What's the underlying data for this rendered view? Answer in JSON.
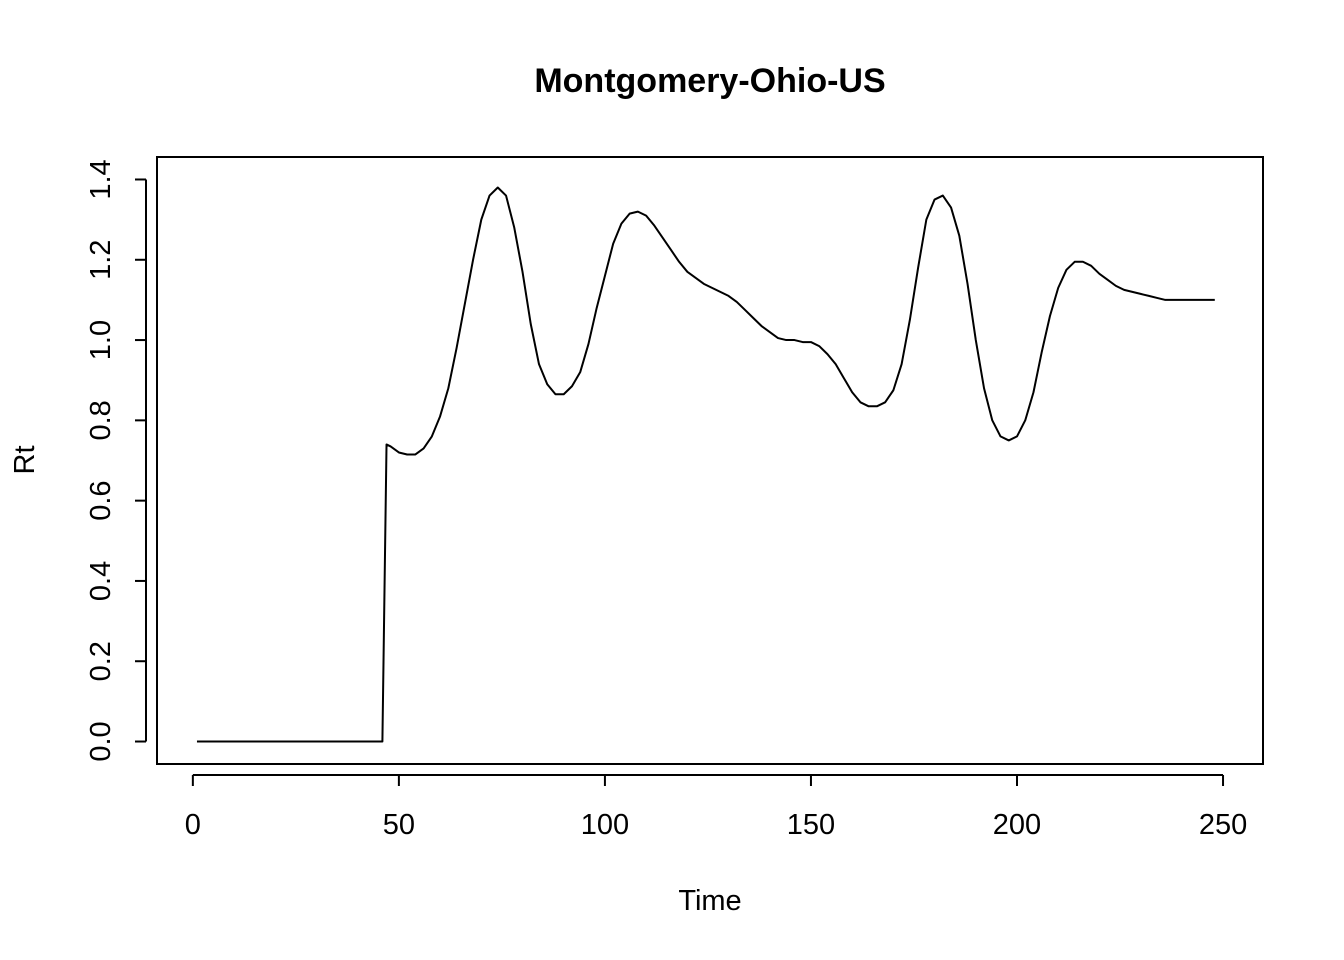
{
  "chart_data": {
    "type": "line",
    "title": "Montgomery-Ohio-US",
    "xlabel": "Time",
    "ylabel": "Rt",
    "xlim": [
      -8.7,
      259.7
    ],
    "ylim": [
      -0.056,
      1.456
    ],
    "xticks": [
      0,
      50,
      100,
      150,
      200,
      250
    ],
    "xtick_labels": [
      "0",
      "50",
      "100",
      "150",
      "200",
      "250"
    ],
    "yticks": [
      0.0,
      0.2,
      0.4,
      0.6,
      0.8,
      1.0,
      1.2,
      1.4
    ],
    "ytick_labels": [
      "0.0",
      "0.2",
      "0.4",
      "0.6",
      "0.8",
      "1.0",
      "1.2",
      "1.4"
    ],
    "grid": false,
    "line_color": "#000000",
    "series": [
      {
        "x": [
          1,
          46,
          47,
          48,
          50,
          52,
          54,
          56,
          58,
          60,
          62,
          64,
          66,
          68,
          70,
          72,
          74,
          76,
          78,
          80,
          82,
          84,
          86,
          88,
          90,
          92,
          94,
          96,
          98,
          100,
          102,
          104,
          106,
          108,
          110,
          112,
          114,
          116,
          118,
          120,
          122,
          124,
          126,
          128,
          130,
          132,
          134,
          136,
          138,
          140,
          142,
          144,
          146,
          148,
          150,
          152,
          154,
          156,
          158,
          160,
          162,
          164,
          166,
          168,
          170,
          172,
          174,
          176,
          178,
          180,
          182,
          184,
          186,
          188,
          190,
          192,
          194,
          196,
          198,
          200,
          202,
          204,
          206,
          208,
          210,
          212,
          214,
          216,
          218,
          220,
          222,
          224,
          226,
          228,
          230,
          232,
          234,
          236,
          238,
          240,
          242,
          244,
          246,
          248
        ],
        "y": [
          0.0,
          0.0,
          0.74,
          0.735,
          0.72,
          0.715,
          0.715,
          0.73,
          0.76,
          0.81,
          0.88,
          0.98,
          1.09,
          1.2,
          1.3,
          1.36,
          1.38,
          1.36,
          1.28,
          1.17,
          1.04,
          0.94,
          0.89,
          0.865,
          0.865,
          0.885,
          0.92,
          0.99,
          1.08,
          1.16,
          1.24,
          1.29,
          1.315,
          1.32,
          1.31,
          1.285,
          1.255,
          1.225,
          1.195,
          1.17,
          1.155,
          1.14,
          1.13,
          1.12,
          1.11,
          1.095,
          1.075,
          1.055,
          1.035,
          1.02,
          1.005,
          1.0,
          1.0,
          0.995,
          0.995,
          0.985,
          0.965,
          0.94,
          0.905,
          0.87,
          0.845,
          0.835,
          0.835,
          0.845,
          0.875,
          0.94,
          1.05,
          1.18,
          1.3,
          1.35,
          1.36,
          1.33,
          1.26,
          1.14,
          1.0,
          0.88,
          0.8,
          0.76,
          0.75,
          0.76,
          0.8,
          0.87,
          0.97,
          1.06,
          1.13,
          1.175,
          1.195,
          1.195,
          1.185,
          1.165,
          1.15,
          1.135,
          1.125,
          1.12,
          1.115,
          1.11,
          1.105,
          1.1,
          1.1,
          1.1,
          1.1,
          1.1,
          1.1,
          1.1
        ]
      }
    ]
  }
}
